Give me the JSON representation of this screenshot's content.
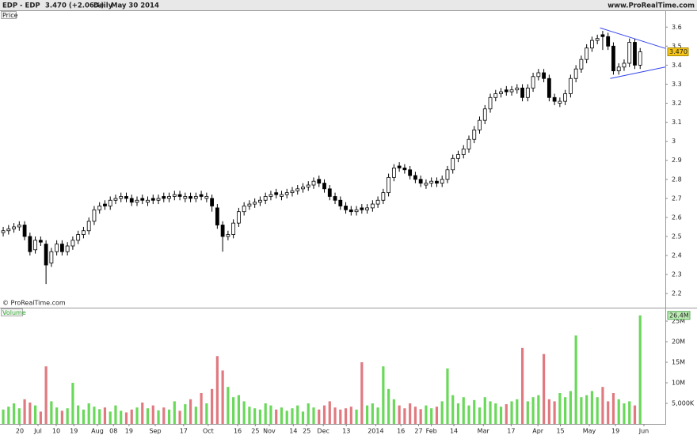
{
  "header": {
    "symbol": "EDP - EDP",
    "quote": "3.470 (+2.06%)",
    "period": "Daily",
    "date": "May 30 2014",
    "site": "www.ProRealTime.com"
  },
  "chart_data": [
    {
      "type": "candlestick",
      "title": "Price",
      "copyright": "© ProRealTime.com",
      "open": [
        2.52,
        2.53,
        2.54,
        2.55,
        2.56,
        2.5,
        2.43,
        2.48,
        2.46,
        2.36,
        2.42,
        2.46,
        2.42,
        2.45,
        2.48,
        2.51,
        2.53,
        2.58,
        2.64,
        2.67,
        2.66,
        2.69,
        2.7,
        2.71,
        2.7,
        2.68,
        2.7,
        2.68,
        2.7,
        2.69,
        2.71,
        2.7,
        2.71,
        2.72,
        2.7,
        2.71,
        2.7,
        2.72,
        2.7,
        2.7,
        2.65,
        2.56,
        2.5,
        2.51,
        2.57,
        2.63,
        2.66,
        2.67,
        2.68,
        2.69,
        2.71,
        2.73,
        2.71,
        2.72,
        2.73,
        2.74,
        2.75,
        2.76,
        2.77,
        2.8,
        2.78,
        2.75,
        2.71,
        2.69,
        2.66,
        2.64,
        2.63,
        2.65,
        2.64,
        2.65,
        2.67,
        2.69,
        2.73,
        2.81,
        2.87,
        2.86,
        2.85,
        2.82,
        2.8,
        2.77,
        2.78,
        2.79,
        2.78,
        2.8,
        2.85,
        2.91,
        2.93,
        2.96,
        3.01,
        3.06,
        3.11,
        3.17,
        3.23,
        3.25,
        3.27,
        3.26,
        3.27,
        3.28,
        3.23,
        3.28,
        3.34,
        3.36,
        3.33,
        3.23,
        3.2,
        3.21,
        3.25,
        3.33,
        3.38,
        3.43,
        3.49,
        3.53,
        3.56,
        3.55,
        3.5,
        3.37,
        3.39,
        3.41,
        3.52,
        3.4
      ],
      "high": [
        2.55,
        2.56,
        2.57,
        2.58,
        2.58,
        2.52,
        2.5,
        2.5,
        2.48,
        2.44,
        2.48,
        2.48,
        2.47,
        2.5,
        2.53,
        2.55,
        2.6,
        2.66,
        2.68,
        2.69,
        2.71,
        2.72,
        2.73,
        2.73,
        2.72,
        2.71,
        2.72,
        2.71,
        2.72,
        2.72,
        2.73,
        2.73,
        2.74,
        2.74,
        2.73,
        2.73,
        2.73,
        2.74,
        2.73,
        2.72,
        2.67,
        2.58,
        2.53,
        2.59,
        2.65,
        2.68,
        2.69,
        2.7,
        2.71,
        2.73,
        2.74,
        2.75,
        2.74,
        2.75,
        2.76,
        2.77,
        2.78,
        2.79,
        2.81,
        2.82,
        2.8,
        2.77,
        2.73,
        2.71,
        2.68,
        2.66,
        2.66,
        2.67,
        2.67,
        2.69,
        2.71,
        2.75,
        2.83,
        2.88,
        2.89,
        2.88,
        2.87,
        2.84,
        2.82,
        2.8,
        2.81,
        2.81,
        2.82,
        2.87,
        2.93,
        2.95,
        2.98,
        3.03,
        3.08,
        3.13,
        3.19,
        3.25,
        3.27,
        3.28,
        3.29,
        3.29,
        3.3,
        3.3,
        3.3,
        3.36,
        3.38,
        3.38,
        3.35,
        3.25,
        3.23,
        3.27,
        3.35,
        3.4,
        3.45,
        3.51,
        3.55,
        3.56,
        3.58,
        3.57,
        3.52,
        3.41,
        3.43,
        3.54,
        3.54,
        3.49
      ],
      "low": [
        2.5,
        2.51,
        2.52,
        2.53,
        2.48,
        2.4,
        2.41,
        2.45,
        2.25,
        2.34,
        2.4,
        2.4,
        2.4,
        2.43,
        2.46,
        2.49,
        2.51,
        2.56,
        2.62,
        2.64,
        2.64,
        2.67,
        2.68,
        2.68,
        2.66,
        2.66,
        2.67,
        2.66,
        2.67,
        2.67,
        2.68,
        2.68,
        2.69,
        2.69,
        2.68,
        2.68,
        2.68,
        2.69,
        2.68,
        2.63,
        2.54,
        2.42,
        2.48,
        2.49,
        2.55,
        2.61,
        2.64,
        2.65,
        2.66,
        2.67,
        2.69,
        2.7,
        2.69,
        2.7,
        2.71,
        2.72,
        2.73,
        2.74,
        2.75,
        2.76,
        2.73,
        2.69,
        2.67,
        2.64,
        2.62,
        2.61,
        2.61,
        2.62,
        2.62,
        2.63,
        2.65,
        2.67,
        2.71,
        2.79,
        2.84,
        2.83,
        2.8,
        2.78,
        2.76,
        2.75,
        2.76,
        2.76,
        2.76,
        2.78,
        2.83,
        2.89,
        2.91,
        2.94,
        2.99,
        3.04,
        3.09,
        3.15,
        3.21,
        3.23,
        3.24,
        3.24,
        3.25,
        3.21,
        3.21,
        3.26,
        3.32,
        3.31,
        3.21,
        3.19,
        3.18,
        3.19,
        3.23,
        3.31,
        3.36,
        3.41,
        3.47,
        3.51,
        3.48,
        3.48,
        3.35,
        3.35,
        3.37,
        3.39,
        3.38,
        3.38
      ],
      "close": [
        2.53,
        2.54,
        2.55,
        2.56,
        2.5,
        2.42,
        2.48,
        2.47,
        2.35,
        2.42,
        2.46,
        2.42,
        2.45,
        2.48,
        2.51,
        2.53,
        2.58,
        2.64,
        2.66,
        2.66,
        2.69,
        2.7,
        2.71,
        2.7,
        2.68,
        2.69,
        2.69,
        2.69,
        2.69,
        2.7,
        2.7,
        2.71,
        2.72,
        2.71,
        2.71,
        2.7,
        2.71,
        2.71,
        2.71,
        2.66,
        2.56,
        2.5,
        2.51,
        2.57,
        2.63,
        2.66,
        2.67,
        2.68,
        2.69,
        2.71,
        2.72,
        2.72,
        2.72,
        2.73,
        2.74,
        2.75,
        2.76,
        2.77,
        2.79,
        2.78,
        2.75,
        2.71,
        2.69,
        2.66,
        2.64,
        2.63,
        2.64,
        2.64,
        2.65,
        2.67,
        2.69,
        2.73,
        2.81,
        2.86,
        2.86,
        2.85,
        2.82,
        2.8,
        2.78,
        2.78,
        2.79,
        2.78,
        2.8,
        2.85,
        2.91,
        2.93,
        2.96,
        3.01,
        3.06,
        3.11,
        3.17,
        3.23,
        3.25,
        3.26,
        3.26,
        3.27,
        3.28,
        3.23,
        3.28,
        3.34,
        3.36,
        3.33,
        3.23,
        3.21,
        3.21,
        3.25,
        3.33,
        3.38,
        3.43,
        3.49,
        3.53,
        3.54,
        3.55,
        3.5,
        3.37,
        3.39,
        3.41,
        3.52,
        3.4,
        3.47
      ],
      "up_color": "#ffffff",
      "down_color": "#000000",
      "ylim": [
        2.13,
        3.68
      ],
      "yticks": [
        2.2,
        2.3,
        2.4,
        2.5,
        2.6,
        2.7,
        2.8,
        2.9,
        3,
        3.1,
        3.2,
        3.3,
        3.4,
        3.5,
        3.6
      ],
      "xlim": [
        -0.6,
        123.7
      ],
      "last_price": {
        "value": 3.47,
        "label": "3.470"
      },
      "trendlines": [
        {
          "color": "#3344ee",
          "x": [
            111.5,
            123.7
          ],
          "y": [
            3.596,
            3.488
          ]
        },
        {
          "color": "#3344ee",
          "x": [
            113.4,
            123.7
          ],
          "y": [
            3.33,
            3.39
          ]
        }
      ]
    },
    {
      "type": "bar",
      "title": "Volume",
      "values": [
        3500000,
        4200000,
        5000000,
        3800000,
        6000000,
        5200000,
        4500000,
        3000000,
        14000000,
        5500000,
        4000000,
        3200000,
        3800000,
        10000000,
        4500000,
        3500000,
        5000000,
        4200000,
        3600000,
        4000000,
        3000000,
        4500000,
        3200000,
        2800000,
        3500000,
        4000000,
        5200000,
        3800000,
        4500000,
        3300000,
        4000000,
        3500000,
        5500000,
        3200000,
        4800000,
        6000000,
        4200000,
        7500000,
        5000000,
        8500000,
        16500000,
        13000000,
        9000000,
        6500000,
        7000000,
        5500000,
        4200000,
        3800000,
        3500000,
        5000000,
        4500000,
        3500000,
        4000000,
        3200000,
        3800000,
        4500000,
        3000000,
        5000000,
        4000000,
        3500000,
        4500000,
        5500000,
        4000000,
        3500000,
        3800000,
        4200000,
        3500000,
        15000000,
        4500000,
        5000000,
        4000000,
        14000000,
        8500000,
        6000000,
        4500000,
        3800000,
        5000000,
        4200000,
        3600000,
        4500000,
        3800000,
        4200000,
        5500000,
        13500000,
        7000000,
        5000000,
        6500000,
        4500000,
        5800000,
        4000000,
        6500000,
        5500000,
        5000000,
        4200000,
        4800000,
        5500000,
        6000000,
        18500000,
        5500000,
        6500000,
        7000000,
        17000000,
        6000000,
        5500000,
        7500000,
        6500000,
        8000000,
        21500000,
        6500000,
        7000000,
        8000000,
        6500000,
        9000000,
        5500000,
        7500000,
        6000000,
        5000000,
        5500000,
        4500000,
        26400000
      ],
      "up_color": "#6ad85a",
      "down_color": "#e07a80",
      "ylim": [
        0,
        27700000
      ],
      "yticks": [
        {
          "value": 5000000,
          "label": "5,000K"
        },
        {
          "value": 10000000,
          "label": "10M"
        },
        {
          "value": 15000000,
          "label": "15M"
        },
        {
          "value": 20000000,
          "label": "20M"
        },
        {
          "value": 25000000,
          "label": "25M"
        }
      ],
      "xlim": [
        -0.6,
        123.7
      ],
      "xticks": [
        {
          "value": 3.1,
          "label": "20"
        },
        {
          "value": 6.5,
          "label": "Jul"
        },
        {
          "value": 9.9,
          "label": "10"
        },
        {
          "value": 13.2,
          "label": "19"
        },
        {
          "value": 17.6,
          "label": "Aug"
        },
        {
          "value": 20.6,
          "label": "08"
        },
        {
          "value": 23.5,
          "label": "19"
        },
        {
          "value": 28.4,
          "label": "Sep"
        },
        {
          "value": 33.7,
          "label": "17"
        },
        {
          "value": 38.3,
          "label": "Oct"
        },
        {
          "value": 43.8,
          "label": "16"
        },
        {
          "value": 47.1,
          "label": "25"
        },
        {
          "value": 49.7,
          "label": "Nov"
        },
        {
          "value": 54.2,
          "label": "14"
        },
        {
          "value": 56.7,
          "label": "25"
        },
        {
          "value": 59.8,
          "label": "Dec"
        },
        {
          "value": 64.1,
          "label": "13"
        },
        {
          "value": 69.6,
          "label": "2014"
        },
        {
          "value": 74.3,
          "label": "16"
        },
        {
          "value": 77.6,
          "label": "27"
        },
        {
          "value": 80.0,
          "label": "Feb"
        },
        {
          "value": 84.2,
          "label": "14"
        },
        {
          "value": 89.7,
          "label": "Mar"
        },
        {
          "value": 94.9,
          "label": "17"
        },
        {
          "value": 99.9,
          "label": "Apr"
        },
        {
          "value": 104.1,
          "label": "15"
        },
        {
          "value": 109.5,
          "label": "May"
        },
        {
          "value": 114.4,
          "label": "19"
        },
        {
          "value": 119.7,
          "label": "Jun"
        }
      ],
      "last_volume": {
        "value": 26400000,
        "label": "26.4M"
      }
    }
  ]
}
